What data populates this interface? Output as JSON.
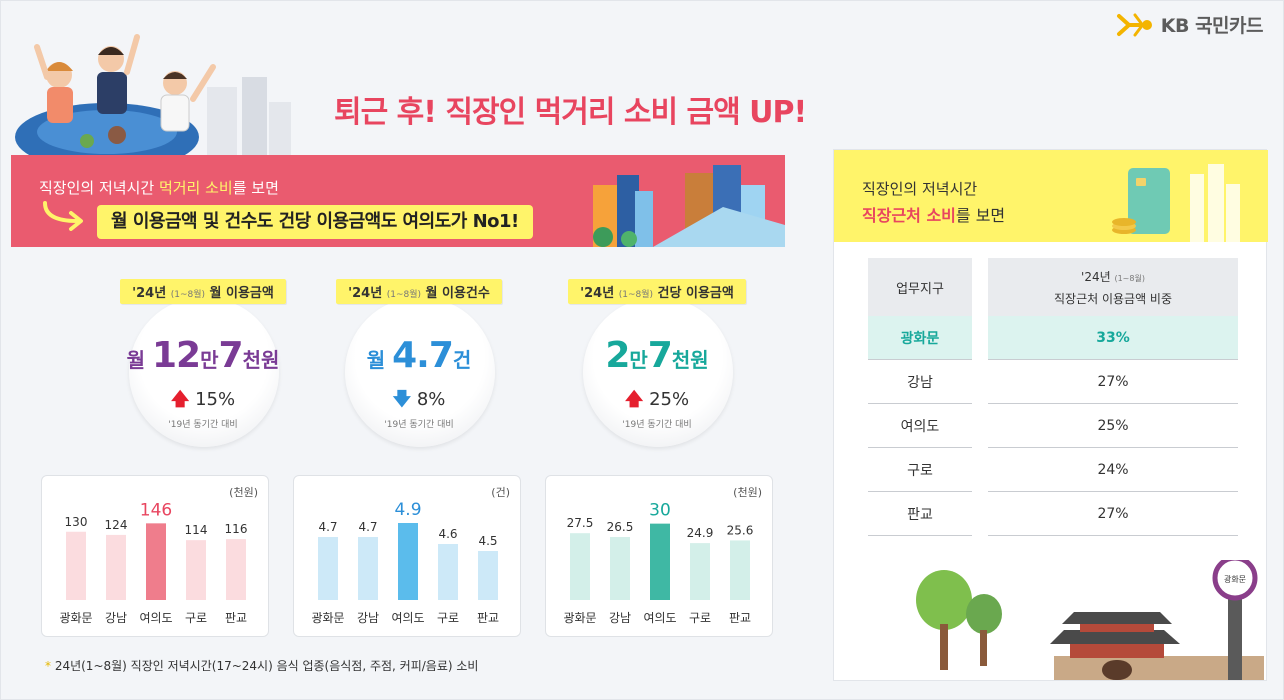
{
  "brand": {
    "logo_text": "KB 국민카드"
  },
  "title": "퇴근 후! 직장인 먹거리 소비 금액 UP!",
  "left_banner": {
    "line1_prefix": "직장인의 저녁시간 ",
    "line1_highlight": "먹거리 소비",
    "line1_suffix": "를 보면",
    "headline": "월 이용금액 및 건수도 건당 이용금액도 여의도가 No1!"
  },
  "stats": [
    {
      "tag_prefix": "'24년 ",
      "tag_period": "(1~8월)",
      "tag_label": " 월 이용금액",
      "value_parts": [
        {
          "t": "월 ",
          "cls": "sm"
        },
        {
          "t": "12",
          "cls": "big"
        },
        {
          "t": "만",
          "cls": "sm"
        },
        {
          "t": "7",
          "cls": "big"
        },
        {
          "t": "천원",
          "cls": "sm"
        }
      ],
      "value_color": "#7a3b95",
      "direction": "up",
      "arrow": "🡅",
      "change": "15%",
      "note": "'19년 동기간 대비"
    },
    {
      "tag_prefix": "'24년 ",
      "tag_period": "(1~8월)",
      "tag_label": " 월 이용건수",
      "value_parts": [
        {
          "t": "월 ",
          "cls": "sm"
        },
        {
          "t": "4.7",
          "cls": "big"
        },
        {
          "t": "건",
          "cls": "sm"
        }
      ],
      "value_color": "#2c8fd8",
      "direction": "down",
      "arrow": "🡇",
      "change": "8%",
      "note": "'19년 동기간 대비"
    },
    {
      "tag_prefix": "'24년 ",
      "tag_period": "(1~8월)",
      "tag_label": " 건당 이용금액",
      "value_parts": [
        {
          "t": "2",
          "cls": "big"
        },
        {
          "t": "만",
          "cls": "sm"
        },
        {
          "t": "7",
          "cls": "big"
        },
        {
          "t": "천원",
          "cls": "sm"
        }
      ],
      "value_color": "#17a89b",
      "direction": "up",
      "arrow": "🡅",
      "change": "25%",
      "note": "'19년 동기간 대비"
    }
  ],
  "chart_data": [
    {
      "type": "bar",
      "unit": "(천원)",
      "categories": [
        "광화문",
        "강남",
        "여의도",
        "구로",
        "판교"
      ],
      "values": [
        130,
        124,
        146,
        114,
        116
      ],
      "labels": [
        "130",
        "124",
        "146",
        "114",
        "116"
      ],
      "highlight_index": 2,
      "base_color": "#fbdcdf",
      "highlight_color": "#ef7d8c",
      "highlight_text_color": "#e8455f",
      "ylim": [
        0,
        160
      ]
    },
    {
      "type": "bar",
      "unit": "(건)",
      "categories": [
        "광화문",
        "강남",
        "여의도",
        "구로",
        "판교"
      ],
      "values": [
        4.7,
        4.7,
        4.9,
        4.6,
        4.5
      ],
      "labels": [
        "4.7",
        "4.7",
        "4.9",
        "4.6",
        "4.5"
      ],
      "highlight_index": 2,
      "base_color": "#cde9f8",
      "highlight_color": "#5bbcec",
      "highlight_text_color": "#2c8fd8",
      "ylim": [
        3.8,
        5.0
      ]
    },
    {
      "type": "bar",
      "unit": "(천원)",
      "categories": [
        "광화문",
        "강남",
        "여의도",
        "구로",
        "판교"
      ],
      "values": [
        27.5,
        26.5,
        30,
        24.9,
        25.6
      ],
      "labels": [
        "27.5",
        "26.5",
        "30",
        "24.9",
        "25.6"
      ],
      "highlight_index": 2,
      "base_color": "#d3efe9",
      "highlight_color": "#3fb8a4",
      "highlight_text_color": "#17a89b",
      "ylim": [
        10,
        32
      ]
    }
  ],
  "footnote": {
    "mark": "*",
    "text": " 24년(1~8월) 직장인 저녁시간(17~24시) 음식 업종(음식점, 주점, 커피/음료) 소비"
  },
  "right_panel": {
    "line1": "직장인의 저녁시간",
    "line2_highlight": "직장근처 소비",
    "line2_suffix": "를 보면",
    "table": {
      "col1_header": "업무지구",
      "col2_header_year": "'24년 ",
      "col2_header_period": "(1~8월)",
      "col2_header_label": "직장근처 이용금액 비중",
      "rows": [
        {
          "district": "광화문",
          "share": "33%"
        },
        {
          "district": "강남",
          "share": "27%"
        },
        {
          "district": "여의도",
          "share": "25%"
        },
        {
          "district": "구로",
          "share": "24%"
        },
        {
          "district": "판교",
          "share": "27%"
        }
      ]
    },
    "station_sign": "광화문"
  },
  "colors": {
    "title": "#e8455f",
    "banner": "#ea5b6f",
    "yellow": "#fff46a",
    "highlight_row": "#dcf3ef"
  }
}
